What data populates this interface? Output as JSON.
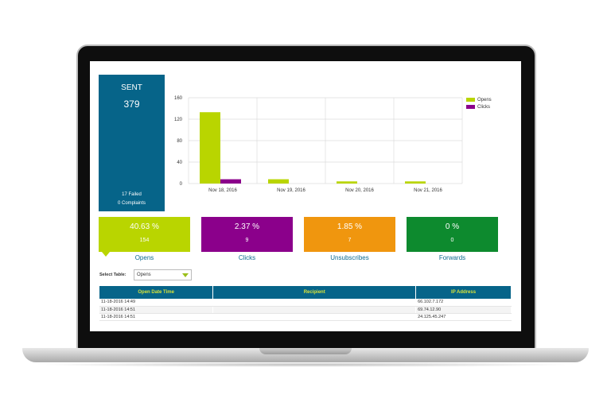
{
  "sent": {
    "title": "SENT",
    "count": "379",
    "failed": "17 Failed",
    "complaints": "0 Complaints"
  },
  "chart_data": {
    "type": "bar",
    "categories": [
      "Nov 18, 2016",
      "Nov 19, 2016",
      "Nov 20, 2016",
      "Nov 21, 2016"
    ],
    "series": [
      {
        "name": "Opens",
        "values": [
          133,
          8,
          4,
          4
        ],
        "color": "#b9d500"
      },
      {
        "name": "Clicks",
        "values": [
          8,
          0,
          0,
          0
        ],
        "color": "#8b008b"
      }
    ],
    "yticks": [
      "0",
      "40",
      "80",
      "120",
      "160"
    ],
    "ylim": [
      0,
      160
    ],
    "grid": true,
    "legend_position": "top-right"
  },
  "stats": [
    {
      "percent": "40.63 %",
      "count": "154",
      "label": "Opens",
      "color": "#b9d500"
    },
    {
      "percent": "2.37 %",
      "count": "9",
      "label": "Clicks",
      "color": "#8b008b"
    },
    {
      "percent": "1.85 %",
      "count": "7",
      "label": "Unsubscribes",
      "color": "#f0960e"
    },
    {
      "percent": "0 %",
      "count": "0",
      "label": "Forwards",
      "color": "#0d8a2e"
    }
  ],
  "select_table": {
    "label": "Select Table:",
    "value": "Opens"
  },
  "table": {
    "headers": [
      "Open Date Time",
      "Recipient",
      "IP Address"
    ],
    "rows": [
      [
        "11-18-2016 14:49",
        "",
        "66.102.7.172"
      ],
      [
        "11-18-2016 14:51",
        "",
        "69.74.12.90"
      ],
      [
        "11-18-2016 14:51",
        "",
        "24.125.45.247"
      ]
    ]
  }
}
